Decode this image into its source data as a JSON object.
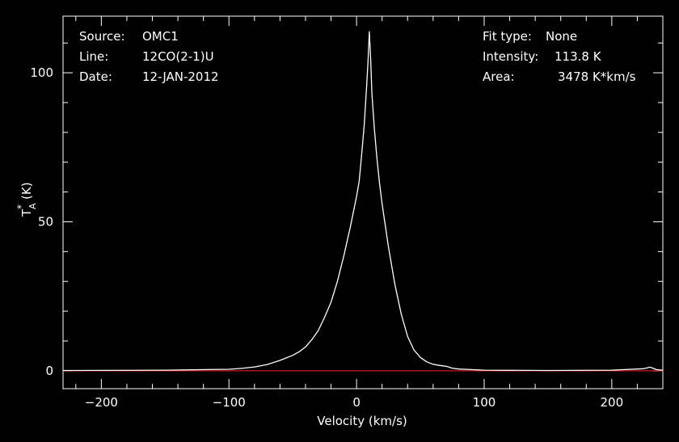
{
  "info": {
    "source_label": "Source:",
    "source_value": "OMC1",
    "line_label": "Line:",
    "line_value": "12CO(2-1)U",
    "date_label": "Date:",
    "date_value": "12-JAN-2012",
    "fit_label": "Fit type:",
    "fit_value": "None",
    "intensity_label": "Intensity:",
    "intensity_value": "113.8 K",
    "area_label": "Area:",
    "area_value": "3478 K*km/s"
  },
  "colors": {
    "background": "#000000",
    "axes": "#ffffff",
    "spectrum": "#ffffff",
    "baseline": "#ff2020"
  },
  "chart_data": {
    "type": "line",
    "xlabel": "Velocity (km/s)",
    "ylabel": "T",
    "ylabel_superscript": "*",
    "ylabel_subscript": "A",
    "ylabel_unit": "(K)",
    "xlim": [
      -230,
      240
    ],
    "ylim": [
      -6,
      119
    ],
    "x_ticks": [
      -200,
      -100,
      0,
      100,
      200
    ],
    "x_tick_labels": [
      "−200",
      "−100",
      "0",
      "100",
      "200"
    ],
    "y_ticks": [
      0,
      50,
      100
    ],
    "y_tick_labels": [
      "0",
      "50",
      "100"
    ],
    "x_minor_step": 20,
    "y_minor_step": 10,
    "grid": false,
    "baseline_value": 0,
    "series": [
      {
        "x": [
          -230,
          -150,
          -100,
          -90,
          -80,
          -70,
          -60,
          -50,
          -45,
          -40,
          -35,
          -30,
          -25,
          -20,
          -15,
          -10,
          -5,
          0,
          2,
          4,
          6,
          8,
          9,
          10,
          11,
          12,
          14,
          16,
          18,
          20,
          25,
          30,
          35,
          40,
          45,
          50,
          55,
          60,
          65,
          70,
          72,
          75,
          80,
          90,
          100,
          150,
          200,
          225,
          230,
          235,
          240
        ],
        "y": [
          0.1,
          0.2,
          0.5,
          0.8,
          1.3,
          2.1,
          3.5,
          5.2,
          6.4,
          8.0,
          10.5,
          13.5,
          18.0,
          23.0,
          30.0,
          38.5,
          48.0,
          58.5,
          63.5,
          72.5,
          82.5,
          96.0,
          104.0,
          113.8,
          105.0,
          93.0,
          81.0,
          71.0,
          63.0,
          56.0,
          41.5,
          29.0,
          19.0,
          11.5,
          7.0,
          4.5,
          3.0,
          2.2,
          1.8,
          1.5,
          1.3,
          0.9,
          0.6,
          0.4,
          0.2,
          0.1,
          0.2,
          0.7,
          1.2,
          0.4,
          0.2
        ]
      }
    ]
  }
}
